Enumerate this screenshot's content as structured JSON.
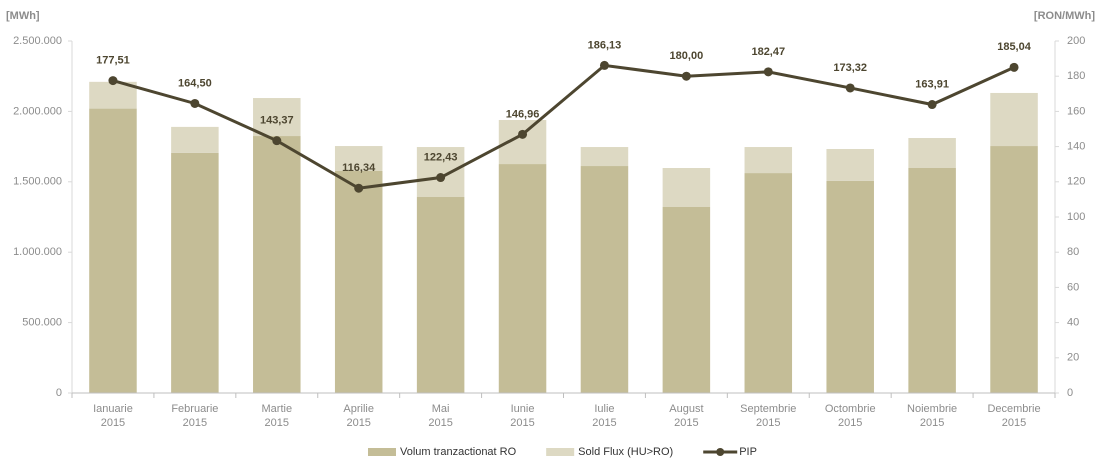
{
  "chart_data": {
    "type": "bar",
    "y_label": "[MWh]",
    "y2_label": "[RON/MWh]",
    "categories": [
      [
        "Ianuarie",
        "2015"
      ],
      [
        "Februarie",
        "2015"
      ],
      [
        "Martie",
        "2015"
      ],
      [
        "Aprilie",
        "2015"
      ],
      [
        "Mai",
        "2015"
      ],
      [
        "Iunie",
        "2015"
      ],
      [
        "Iulie",
        "2015"
      ],
      [
        "August",
        "2015"
      ],
      [
        "Septembrie",
        "2015"
      ],
      [
        "Octombrie",
        "2015"
      ],
      [
        "Noiembrie",
        "2015"
      ],
      [
        "Decembrie",
        "2015"
      ]
    ],
    "series": [
      {
        "name": "Volum tranzactionat RO",
        "type": "bar",
        "color": "#c4bd97",
        "values": [
          2020000,
          1705000,
          1825000,
          1577000,
          1392000,
          1626000,
          1612000,
          1321000,
          1562000,
          1506000,
          1598000,
          1754000
        ]
      },
      {
        "name": "Sold Flux (HU>RO)",
        "type": "bar",
        "color": "#ddd9c3",
        "values": [
          190000,
          185000,
          270000,
          177000,
          355000,
          313000,
          135000,
          277000,
          185000,
          227000,
          213000,
          377000
        ]
      },
      {
        "name": "PIP",
        "type": "line",
        "axis": "y2",
        "color": "#4d4630",
        "values": [
          177.51,
          164.5,
          143.37,
          116.34,
          122.43,
          146.96,
          186.13,
          180,
          182.47,
          173.32,
          163.91,
          185.04
        ],
        "value_labels": [
          "177,51",
          "164,50",
          "143,37",
          "116,34",
          "122,43",
          "146,96",
          "186,13",
          "180,00",
          "182,47",
          "173,32",
          "163,91",
          "185,04"
        ]
      }
    ],
    "ylim": [
      0,
      2500000
    ],
    "yticks": [
      0,
      {
        "value": 500000,
        "label": "500.000"
      },
      {
        "value": 1000000,
        "label": "1.000.000"
      },
      {
        "value": 1500000,
        "label": "1.500.000"
      },
      {
        "value": 2000000,
        "label": "2.000.000"
      },
      {
        "value": 2500000,
        "label": "2.500.000"
      }
    ],
    "y2lim": [
      0,
      200
    ],
    "y2ticks": [
      0,
      20,
      40,
      60,
      80,
      100,
      120,
      140,
      160,
      180,
      200
    ],
    "legend": "bottom"
  }
}
